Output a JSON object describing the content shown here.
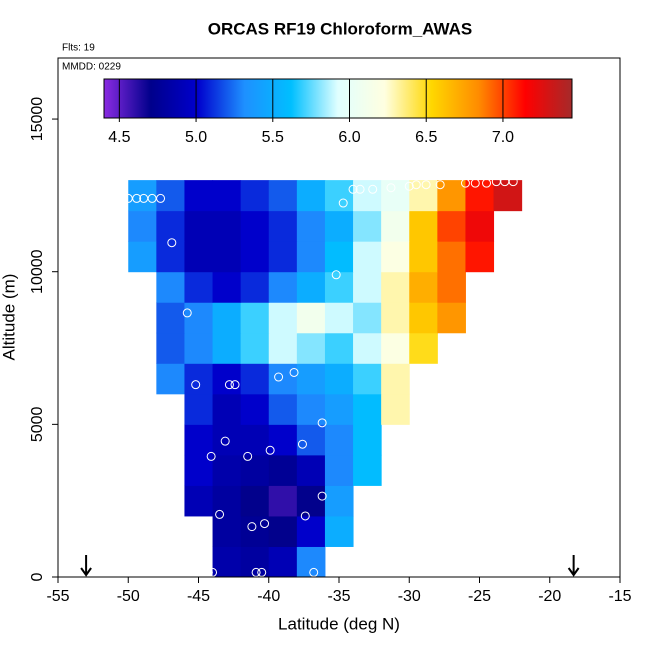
{
  "chart_data": {
    "type": "heatmap",
    "title": "ORCAS RF19 Chloroform_AWAS",
    "subtitle": "Flts: 19",
    "annotation": "MMDD: 0229",
    "xlabel": "Latitude (deg N)",
    "ylabel": "Altitude (m)",
    "xlim": [
      -55,
      -15
    ],
    "ylim": [
      0,
      17000
    ],
    "xticks": [
      -55,
      -50,
      -45,
      -40,
      -35,
      -30,
      -25,
      -20,
      -15
    ],
    "yticks": [
      0,
      5000,
      10000,
      15000
    ],
    "x_edges": [
      -52,
      -50,
      -48,
      -46,
      -44,
      -42,
      -40,
      -38,
      -36,
      -34,
      -32,
      -30,
      -28,
      -26,
      -24,
      -22
    ],
    "y_edges": [
      0,
      1000,
      2000,
      3000,
      4000,
      5000,
      6000,
      7000,
      8000,
      9000,
      10000,
      11000,
      12000,
      13000
    ],
    "z": [
      [
        null,
        null,
        null,
        null,
        4.85,
        4.8,
        4.9,
        5.3,
        null,
        null,
        null,
        null,
        null,
        null,
        null
      ],
      [
        null,
        null,
        null,
        null,
        4.8,
        4.75,
        4.7,
        5.0,
        5.5,
        null,
        null,
        null,
        null,
        null,
        null
      ],
      [
        null,
        null,
        null,
        4.9,
        4.8,
        4.7,
        4.6,
        4.7,
        5.4,
        null,
        null,
        null,
        null,
        null,
        null
      ],
      [
        null,
        null,
        null,
        5.0,
        4.85,
        4.8,
        4.75,
        4.9,
        5.3,
        5.6,
        null,
        null,
        null,
        null,
        null
      ],
      [
        null,
        null,
        null,
        5.0,
        4.9,
        4.9,
        5.0,
        5.2,
        5.3,
        5.6,
        null,
        null,
        null,
        null,
        null
      ],
      [
        null,
        null,
        null,
        5.1,
        4.9,
        5.0,
        5.2,
        5.3,
        5.4,
        5.6,
        6.3,
        null,
        null,
        null,
        null
      ],
      [
        null,
        null,
        5.3,
        5.1,
        5.0,
        5.1,
        5.3,
        5.4,
        5.5,
        5.7,
        6.3,
        null,
        null,
        null,
        null
      ],
      [
        null,
        null,
        5.2,
        5.3,
        5.5,
        5.7,
        5.9,
        5.8,
        5.7,
        5.9,
        6.2,
        6.5,
        null,
        null,
        null
      ],
      [
        null,
        null,
        5.2,
        5.3,
        5.5,
        5.7,
        5.9,
        6.1,
        5.9,
        5.8,
        6.3,
        6.6,
        6.8,
        null,
        null
      ],
      [
        null,
        null,
        5.3,
        5.1,
        5.0,
        5.1,
        5.3,
        5.5,
        5.7,
        5.9,
        6.3,
        6.7,
        6.9,
        null,
        null
      ],
      [
        null,
        5.4,
        5.1,
        4.9,
        4.9,
        5.0,
        5.1,
        5.3,
        5.6,
        5.9,
        6.2,
        6.6,
        6.9,
        7.1,
        null
      ],
      [
        null,
        5.3,
        5.1,
        4.9,
        4.9,
        5.0,
        5.1,
        5.3,
        5.5,
        5.8,
        6.1,
        6.6,
        7.0,
        7.2,
        null
      ],
      [
        null,
        5.4,
        5.2,
        5.0,
        5.0,
        5.1,
        5.2,
        5.5,
        5.7,
        5.9,
        6.0,
        6.3,
        6.8,
        7.1,
        7.3
      ]
    ],
    "zlim": [
      4.4,
      7.45
    ],
    "zticks": [
      4.5,
      {
        "value": 5,
        "label": "5.0"
      },
      5.5,
      {
        "value": 6,
        "label": "6.0"
      },
      6.5,
      {
        "value": 7,
        "label": "7.0"
      }
    ],
    "colormap": [
      "#8a2be2",
      "#00008b",
      "#0000cd",
      "#1e90ff",
      "#00bfff",
      "#e0ffff",
      "#ffffe0",
      "#ffd700",
      "#ff8c00",
      "#ff0000",
      "#a52a2a"
    ],
    "points": {
      "x": [
        -36.8,
        -40.5,
        -40.9,
        -44,
        -44.3,
        -44.6,
        -43.5,
        -41.2,
        -40.3,
        -37.4,
        -36.2,
        -44.1,
        -43.1,
        -41.5,
        -39.9,
        -37.6,
        -36.2,
        -45.2,
        -42.8,
        -42.4,
        -39.3,
        -38.2,
        -45.8,
        -46.9,
        -35.2,
        -34.7,
        -50.4,
        -50,
        -49.4,
        -48.9,
        -48.3,
        -47.7,
        -34,
        -33.5,
        -32.6,
        -31.3,
        -30,
        -29.5,
        -28.8,
        -27.8,
        -26,
        -25.3,
        -24.5,
        -23.8,
        -23.2,
        -22.6
      ],
      "y": [
        150,
        150,
        150,
        150,
        150,
        1650,
        2050,
        1650,
        1750,
        2000,
        2650,
        3950,
        4450,
        3950,
        4150,
        4350,
        5050,
        6300,
        6300,
        6300,
        6550,
        6700,
        8650,
        10950,
        9900,
        12250,
        12400,
        12400,
        12400,
        12400,
        12400,
        12400,
        12700,
        12700,
        12700,
        12750,
        12800,
        12850,
        12850,
        12850,
        12900,
        12900,
        12900,
        12950,
        12950,
        12950
      ],
      "color": "#ffffff"
    },
    "arrows": [
      -53,
      -18.3
    ]
  }
}
